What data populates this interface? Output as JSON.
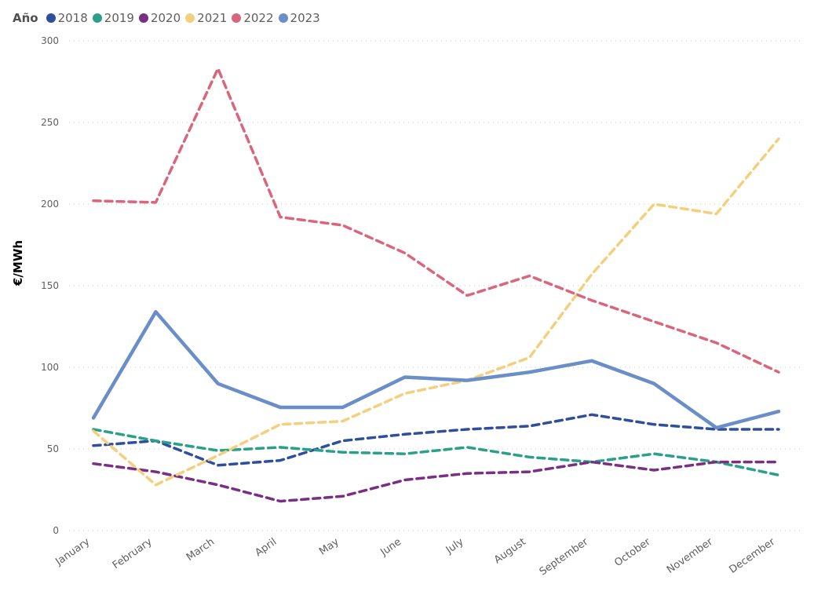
{
  "legend": {
    "title": "Año",
    "items": [
      {
        "label": "2018",
        "color": "#2e4f9e"
      },
      {
        "label": "2019",
        "color": "#2aa08a"
      },
      {
        "label": "2020",
        "color": "#7a2f85"
      },
      {
        "label": "2021",
        "color": "#f3cf7e"
      },
      {
        "label": "2022",
        "color": "#d9667c"
      },
      {
        "label": "2023",
        "color": "#6a8fc8"
      }
    ]
  },
  "chart_data": {
    "type": "line",
    "title": "",
    "xlabel": "",
    "ylabel": "€/MWh",
    "ylim": [
      0,
      300
    ],
    "yticks": [
      0,
      50,
      100,
      150,
      200,
      250,
      300
    ],
    "grid": true,
    "legend_position": "top-left",
    "categories": [
      "January",
      "February",
      "March",
      "April",
      "May",
      "June",
      "July",
      "August",
      "September",
      "October",
      "November",
      "December"
    ],
    "series": [
      {
        "name": "2018",
        "color": "#2e4f9e",
        "style": "dashed",
        "values": [
          52,
          55,
          40,
          43,
          55,
          59,
          62,
          64,
          71,
          65,
          62,
          62
        ]
      },
      {
        "name": "2019",
        "color": "#2aa08a",
        "style": "dashed",
        "values": [
          62,
          55,
          49,
          51,
          48,
          47,
          51,
          45,
          42,
          47,
          42,
          34
        ]
      },
      {
        "name": "2020",
        "color": "#7a2f85",
        "style": "dashed",
        "values": [
          41,
          36,
          28,
          18,
          21,
          31,
          35,
          36,
          42,
          37,
          42,
          42
        ]
      },
      {
        "name": "2021",
        "color": "#f3cf7e",
        "style": "dashed",
        "values": [
          61,
          28,
          46,
          65,
          67,
          84,
          92,
          106,
          157,
          200,
          194,
          240
        ]
      },
      {
        "name": "2022",
        "color": "#d9667c",
        "style": "dashed",
        "values": [
          202,
          201,
          283,
          192,
          187,
          170,
          144,
          156,
          141,
          128,
          115,
          97
        ]
      },
      {
        "name": "2023",
        "color": "#6a8fc8",
        "style": "solid",
        "values": [
          69,
          134,
          90,
          75.5,
          75.5,
          94,
          92,
          97,
          104,
          90,
          63,
          73
        ]
      }
    ]
  }
}
